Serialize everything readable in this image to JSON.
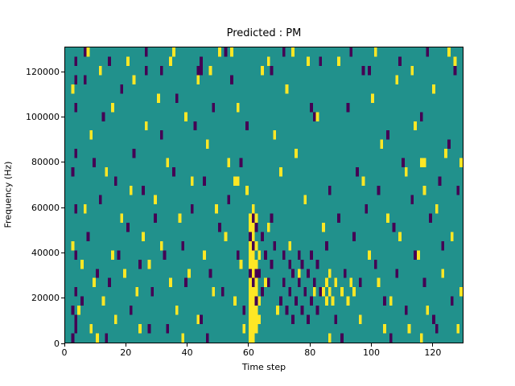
{
  "chart_data": {
    "type": "heatmap",
    "title": "Predicted : PM",
    "xlabel": "Time step",
    "ylabel": "Frequency (Hz)",
    "x_range": [
      0,
      130
    ],
    "y_range": [
      0,
      131072
    ],
    "grid_cols": 130,
    "grid_rows": 32,
    "cell_height_hz": 4096,
    "x_ticks": [
      0,
      20,
      40,
      60,
      80,
      100,
      120
    ],
    "y_ticks": [
      0,
      20000,
      40000,
      60000,
      80000,
      100000,
      120000
    ],
    "legend": "none",
    "grid": "off",
    "colors": {
      "figure_background": "#ffffff",
      "background": "#21918c",
      "low": "#440154",
      "high": "#fde725",
      "axis": "#000000"
    },
    "cells": {
      "yellow": [
        [
          60,
          0
        ],
        [
          60,
          1
        ],
        [
          60,
          2
        ],
        [
          60,
          3
        ],
        [
          60,
          4
        ],
        [
          60,
          5
        ],
        [
          60,
          6
        ],
        [
          60,
          8
        ],
        [
          60,
          9
        ],
        [
          60,
          10
        ],
        [
          60,
          12
        ],
        [
          60,
          13
        ],
        [
          61,
          0
        ],
        [
          61,
          1
        ],
        [
          61,
          2
        ],
        [
          61,
          3
        ],
        [
          61,
          4
        ],
        [
          61,
          5
        ],
        [
          61,
          7
        ],
        [
          61,
          8
        ],
        [
          61,
          9
        ],
        [
          61,
          11
        ],
        [
          61,
          12
        ],
        [
          61,
          14
        ],
        [
          62,
          1
        ],
        [
          62,
          2
        ],
        [
          62,
          3
        ],
        [
          62,
          5
        ],
        [
          62,
          6
        ],
        [
          62,
          8
        ],
        [
          62,
          10
        ],
        [
          62,
          13
        ],
        [
          63,
          2
        ],
        [
          63,
          4
        ],
        [
          63,
          9
        ],
        [
          84,
          5
        ],
        [
          85,
          4
        ],
        [
          85,
          6
        ],
        [
          86,
          5
        ],
        [
          86,
          7
        ],
        [
          87,
          4
        ],
        [
          88,
          6
        ],
        [
          90,
          5
        ],
        [
          92,
          4
        ],
        [
          93,
          6
        ],
        [
          94,
          5
        ],
        [
          2,
          10
        ],
        [
          2,
          27
        ],
        [
          4,
          3
        ],
        [
          5,
          8
        ],
        [
          6,
          14
        ],
        [
          8,
          1
        ],
        [
          8,
          22
        ],
        [
          9,
          6
        ],
        [
          11,
          29
        ],
        [
          12,
          4
        ],
        [
          13,
          18
        ],
        [
          15,
          9
        ],
        [
          15,
          25
        ],
        [
          16,
          2
        ],
        [
          18,
          13
        ],
        [
          19,
          7
        ],
        [
          21,
          16
        ],
        [
          22,
          28
        ],
        [
          23,
          5
        ],
        [
          25,
          11
        ],
        [
          26,
          23
        ],
        [
          27,
          8
        ],
        [
          29,
          15
        ],
        [
          30,
          26
        ],
        [
          31,
          10
        ],
        [
          33,
          19
        ],
        [
          34,
          6
        ],
        [
          34,
          30
        ],
        [
          36,
          3
        ],
        [
          37,
          13
        ],
        [
          39,
          24
        ],
        [
          40,
          7
        ],
        [
          41,
          17
        ],
        [
          43,
          2
        ],
        [
          43,
          28
        ],
        [
          45,
          9
        ],
        [
          46,
          21
        ],
        [
          48,
          5
        ],
        [
          49,
          14
        ],
        [
          50,
          31
        ],
        [
          52,
          11
        ],
        [
          53,
          19
        ],
        [
          55,
          4
        ],
        [
          55,
          17
        ],
        [
          56,
          17
        ],
        [
          56,
          25
        ],
        [
          57,
          8
        ],
        [
          59,
          16
        ],
        [
          64,
          29
        ],
        [
          65,
          6
        ],
        [
          66,
          12
        ],
        [
          68,
          22
        ],
        [
          69,
          3
        ],
        [
          70,
          18
        ],
        [
          72,
          27
        ],
        [
          73,
          10
        ],
        [
          75,
          20
        ],
        [
          76,
          7
        ],
        [
          78,
          15
        ],
        [
          79,
          30
        ],
        [
          81,
          5
        ],
        [
          82,
          24
        ],
        [
          84,
          12
        ],
        [
          96,
          2
        ],
        [
          97,
          17
        ],
        [
          99,
          9
        ],
        [
          100,
          26
        ],
        [
          102,
          6
        ],
        [
          103,
          21
        ],
        [
          105,
          13
        ],
        [
          106,
          4
        ],
        [
          108,
          28
        ],
        [
          109,
          11
        ],
        [
          111,
          18
        ],
        [
          112,
          1
        ],
        [
          114,
          23
        ],
        [
          115,
          9
        ],
        [
          116,
          19
        ],
        [
          117,
          19
        ],
        [
          117,
          16
        ],
        [
          118,
          3
        ],
        [
          120,
          27
        ],
        [
          121,
          14
        ],
        [
          123,
          7
        ],
        [
          124,
          20
        ],
        [
          126,
          11
        ],
        [
          127,
          30
        ],
        [
          129,
          5
        ],
        [
          129,
          19
        ],
        [
          7,
          31
        ],
        [
          20,
          30
        ],
        [
          35,
          31
        ],
        [
          47,
          29
        ],
        [
          54,
          31
        ],
        [
          66,
          30
        ],
        [
          74,
          31
        ],
        [
          89,
          30
        ],
        [
          101,
          31
        ],
        [
          113,
          29
        ],
        [
          125,
          31
        ],
        [
          10,
          0
        ],
        [
          24,
          1
        ],
        [
          38,
          0
        ],
        [
          58,
          1
        ],
        [
          86,
          0
        ],
        [
          104,
          1
        ],
        [
          116,
          0
        ],
        [
          128,
          1
        ]
      ],
      "purple": [
        [
          2,
          0
        ],
        [
          2,
          3
        ],
        [
          2,
          18
        ],
        [
          3,
          1
        ],
        [
          3,
          2
        ],
        [
          3,
          5
        ],
        [
          3,
          9
        ],
        [
          3,
          14
        ],
        [
          3,
          20
        ],
        [
          3,
          25
        ],
        [
          3,
          28
        ],
        [
          3,
          30
        ],
        [
          70,
          4
        ],
        [
          71,
          6
        ],
        [
          71,
          9
        ],
        [
          72,
          3
        ],
        [
          73,
          5
        ],
        [
          73,
          8
        ],
        [
          74,
          2
        ],
        [
          74,
          7
        ],
        [
          75,
          4
        ],
        [
          76,
          6
        ],
        [
          76,
          9
        ],
        [
          77,
          3
        ],
        [
          77,
          8
        ],
        [
          78,
          5
        ],
        [
          79,
          2
        ],
        [
          79,
          7
        ],
        [
          80,
          4
        ],
        [
          80,
          9
        ],
        [
          81,
          6
        ],
        [
          82,
          3
        ],
        [
          82,
          8
        ],
        [
          83,
          5
        ],
        [
          63,
          7
        ],
        [
          64,
          5
        ],
        [
          64,
          11
        ],
        [
          65,
          9
        ],
        [
          66,
          6
        ],
        [
          67,
          8
        ],
        [
          67,
          13
        ],
        [
          68,
          10
        ],
        [
          60,
          7
        ],
        [
          60,
          11
        ],
        [
          61,
          6
        ],
        [
          61,
          10
        ],
        [
          61,
          13
        ],
        [
          62,
          4
        ],
        [
          62,
          7
        ],
        [
          62,
          12
        ],
        [
          5,
          4
        ],
        [
          6,
          28
        ],
        [
          7,
          11
        ],
        [
          9,
          19
        ],
        [
          10,
          7
        ],
        [
          11,
          15
        ],
        [
          12,
          24
        ],
        [
          14,
          6
        ],
        [
          16,
          17
        ],
        [
          17,
          9
        ],
        [
          18,
          27
        ],
        [
          20,
          12
        ],
        [
          21,
          3
        ],
        [
          22,
          20
        ],
        [
          24,
          8
        ],
        [
          25,
          16
        ],
        [
          26,
          29
        ],
        [
          28,
          5
        ],
        [
          29,
          13
        ],
        [
          31,
          22
        ],
        [
          32,
          9
        ],
        [
          33,
          1
        ],
        [
          35,
          18
        ],
        [
          36,
          26
        ],
        [
          38,
          10
        ],
        [
          39,
          6
        ],
        [
          41,
          14
        ],
        [
          42,
          23
        ],
        [
          44,
          2
        ],
        [
          45,
          17
        ],
        [
          47,
          7
        ],
        [
          48,
          25
        ],
        [
          50,
          12
        ],
        [
          51,
          5
        ],
        [
          53,
          15
        ],
        [
          54,
          28
        ],
        [
          56,
          9
        ],
        [
          57,
          19
        ],
        [
          58,
          3
        ],
        [
          59,
          23
        ],
        [
          80,
          25
        ],
        [
          81,
          24
        ],
        [
          43,
          29
        ],
        [
          44,
          29
        ],
        [
          85,
          10
        ],
        [
          86,
          16
        ],
        [
          88,
          2
        ],
        [
          89,
          13
        ],
        [
          91,
          7
        ],
        [
          92,
          25
        ],
        [
          94,
          11
        ],
        [
          95,
          18
        ],
        [
          96,
          6
        ],
        [
          98,
          14
        ],
        [
          99,
          29
        ],
        [
          101,
          8
        ],
        [
          102,
          16
        ],
        [
          104,
          4
        ],
        [
          105,
          22
        ],
        [
          107,
          12
        ],
        [
          108,
          7
        ],
        [
          110,
          19
        ],
        [
          111,
          3
        ],
        [
          113,
          15
        ],
        [
          114,
          9
        ],
        [
          116,
          24
        ],
        [
          117,
          6
        ],
        [
          119,
          13
        ],
        [
          120,
          2
        ],
        [
          122,
          17
        ],
        [
          123,
          10
        ],
        [
          125,
          21
        ],
        [
          126,
          4
        ],
        [
          128,
          16
        ],
        [
          6,
          31
        ],
        [
          14,
          30
        ],
        [
          26,
          31
        ],
        [
          31,
          29
        ],
        [
          44,
          30
        ],
        [
          52,
          31
        ],
        [
          67,
          29
        ],
        [
          71,
          31
        ],
        [
          83,
          30
        ],
        [
          93,
          31
        ],
        [
          97,
          29
        ],
        [
          109,
          30
        ],
        [
          118,
          31
        ],
        [
          127,
          29
        ],
        [
          13,
          0
        ],
        [
          27,
          1
        ],
        [
          46,
          0
        ],
        [
          90,
          0
        ],
        [
          106,
          0
        ],
        [
          121,
          1
        ]
      ]
    }
  }
}
